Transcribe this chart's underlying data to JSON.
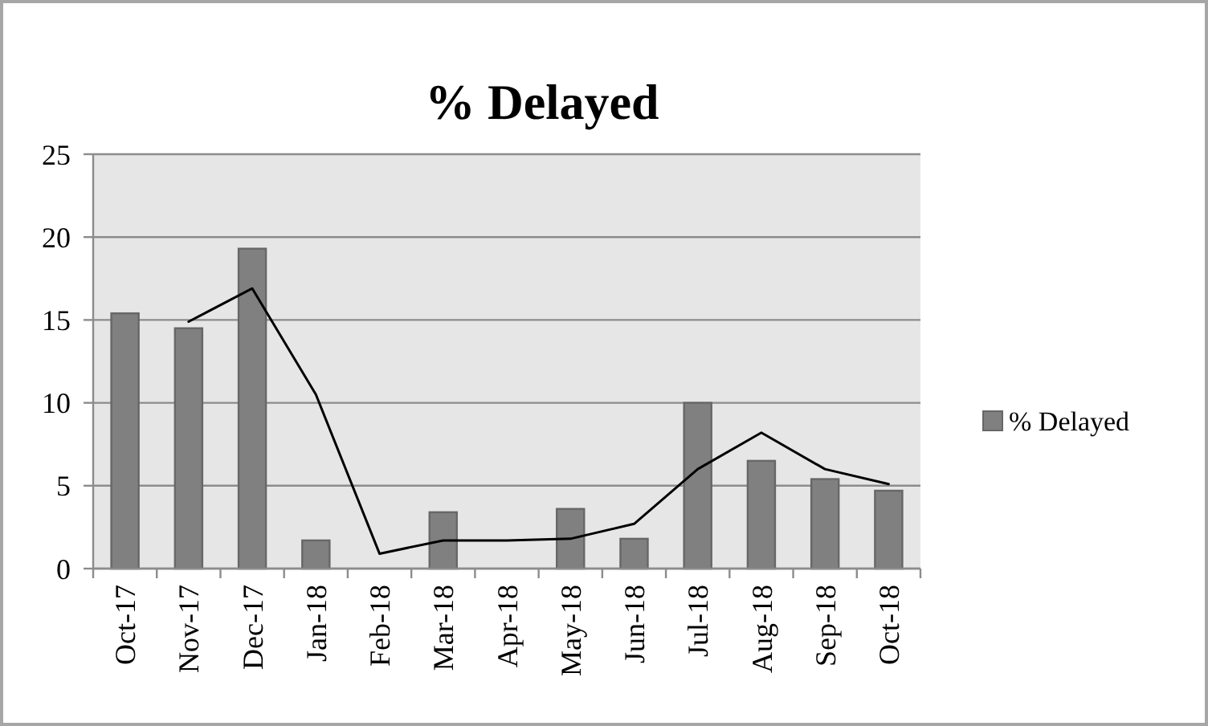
{
  "chart_data": {
    "type": "bar",
    "title": "% Delayed",
    "categories": [
      "Oct-17",
      "Nov-17",
      "Dec-17",
      "Jan-18",
      "Feb-18",
      "Mar-18",
      "Apr-18",
      "May-18",
      "Jun-18",
      "Jul-18",
      "Aug-18",
      "Sep-18",
      "Oct-18"
    ],
    "series": [
      {
        "name": "% Delayed",
        "color": "#808080",
        "values": [
          15.4,
          14.5,
          19.3,
          1.7,
          0,
          3.4,
          0,
          3.6,
          1.8,
          10,
          6.5,
          5.4,
          4.7
        ]
      },
      {
        "type": "line",
        "color": "#000000",
        "values": [
          null,
          14.9,
          16.9,
          10.5,
          0.9,
          1.7,
          1.7,
          1.8,
          2.7,
          6,
          8.2,
          6,
          5.1
        ]
      }
    ],
    "ylim": [
      0,
      25
    ],
    "yticks": [
      0,
      5,
      10,
      15,
      20,
      25
    ],
    "grid": "y",
    "legend": "right"
  }
}
